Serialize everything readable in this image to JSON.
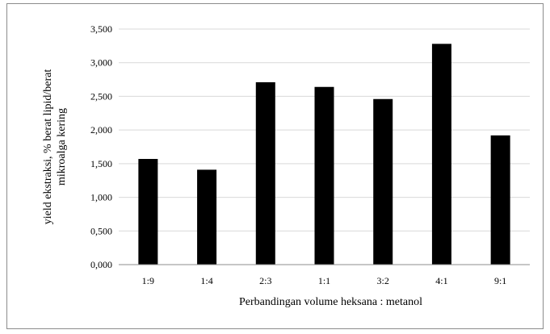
{
  "chart_data": {
    "type": "bar",
    "categories": [
      "1:9",
      "1:4",
      "2:3",
      "1:1",
      "3:2",
      "4:1",
      "9:1"
    ],
    "values": [
      1.57,
      1.41,
      2.71,
      2.64,
      2.46,
      3.28,
      1.92
    ],
    "xlabel": "Perbandingan volume heksana : metanol",
    "ylabel_lines": [
      "yield ekstraksi, % berat lipid/berat",
      "mikroalga kering"
    ],
    "ylim": [
      0,
      3.5
    ],
    "ytick_values": [
      0,
      0.5,
      1,
      1.5,
      2,
      2.5,
      3,
      3.5
    ],
    "ytick_labels": [
      "0,000",
      "0,500",
      "1,000",
      "1,500",
      "2,000",
      "2,500",
      "3,000",
      "3,500"
    ],
    "grid": true,
    "legend": false,
    "bar_color": "#000000",
    "grid_color": "#d9d9d9",
    "axis_color": "#8c8c8c"
  }
}
